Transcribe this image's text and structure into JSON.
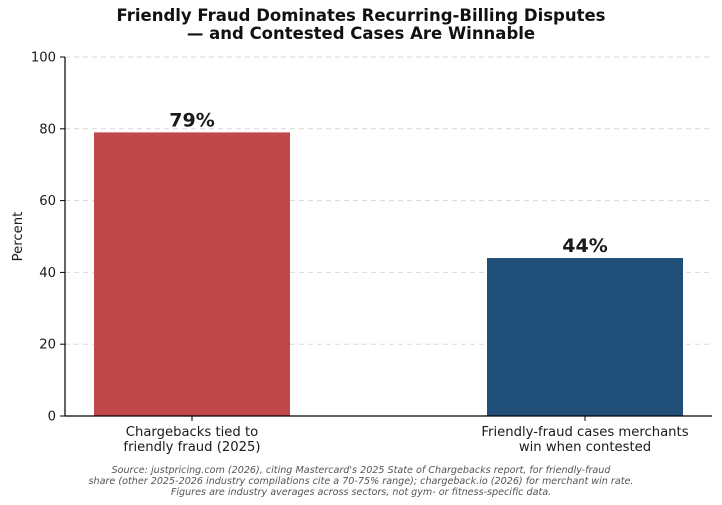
{
  "chart_data": {
    "type": "bar",
    "title_lines": [
      "Friendly Fraud Dominates Recurring-Billing Disputes",
      "— and Contested Cases Are Winnable"
    ],
    "ylabel": "Percent",
    "ylim": [
      0,
      100
    ],
    "yticks": [
      0,
      20,
      40,
      60,
      80,
      100
    ],
    "grid": true,
    "categories": [
      [
        "Chargebacks tied to",
        "friendly fraud (2025)"
      ],
      [
        "Friendly-fraud cases merchants",
        "win when contested"
      ]
    ],
    "values": [
      79,
      44
    ],
    "data_labels": [
      "79%",
      "44%"
    ],
    "colors": [
      "#c0484a",
      "#1f4e79"
    ]
  },
  "source_lines": [
    "Source: justpricing.com (2026), citing Mastercard's 2025 State of Chargebacks report, for friendly-fraud",
    "share (other 2025-2026 industry compilations cite a 70-75% range); chargeback.io (2026) for merchant win rate.",
    "Figures are industry averages across sectors, not gym- or fitness-specific data."
  ]
}
